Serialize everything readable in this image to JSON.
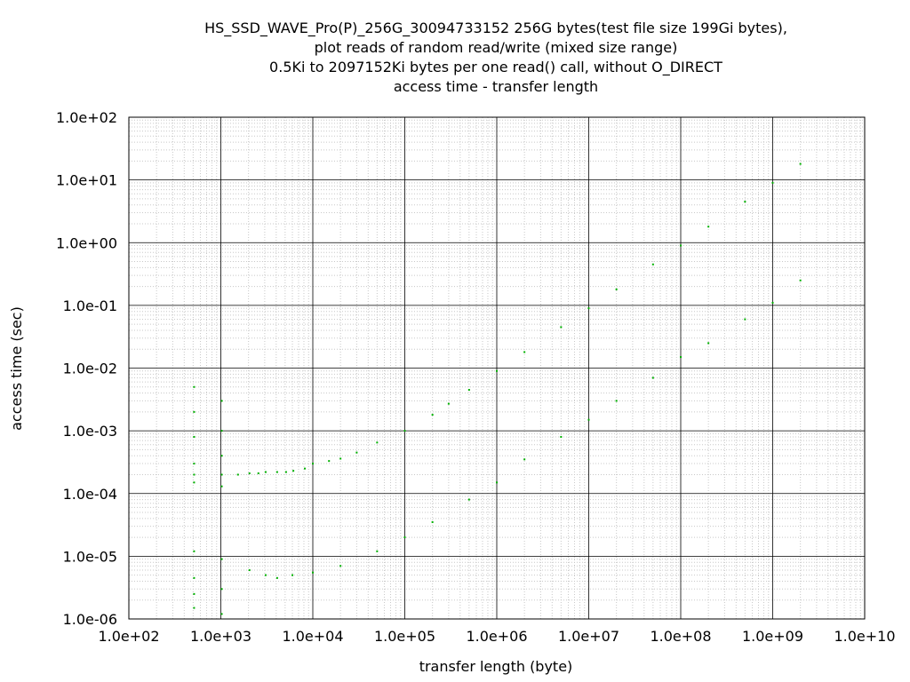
{
  "chart_data": {
    "type": "scatter",
    "title_lines": [
      "HS_SSD_WAVE_Pro(P)_256G_30094733152 256G bytes(test file size 199Gi bytes),",
      "plot reads of random read/write (mixed size range)",
      "0.5Ki to 2097152Ki bytes per one read() call, without O_DIRECT",
      "access time - transfer length"
    ],
    "xlabel": "transfer length (byte)",
    "ylabel": "access time (sec)",
    "x_scale": "log",
    "y_scale": "log",
    "xlim": [
      100,
      10000000000
    ],
    "ylim": [
      1e-06,
      100
    ],
    "x_tick_labels": [
      "1.0e+02",
      "1.0e+03",
      "1.0e+04",
      "1.0e+05",
      "1.0e+06",
      "1.0e+07",
      "1.0e+08",
      "1.0e+09",
      "1.0e+10"
    ],
    "y_tick_labels": [
      "1.0e-06",
      "1.0e-05",
      "1.0e-04",
      "1.0e-03",
      "1.0e-02",
      "1.0e-01",
      "1.0e+00",
      "1.0e+01",
      "1.0e+02"
    ],
    "grid": true,
    "legend": "none",
    "point_color": "#00b000",
    "series": [
      {
        "values": [
          [
            512,
            0.0002
          ],
          [
            512,
            0.00015
          ],
          [
            512,
            0.0003
          ],
          [
            512,
            0.0008
          ],
          [
            512,
            0.002
          ],
          [
            512,
            0.005
          ],
          [
            1024,
            0.0002
          ],
          [
            1024,
            0.00013
          ],
          [
            1024,
            0.0004
          ],
          [
            1024,
            0.001
          ],
          [
            1024,
            0.003
          ],
          [
            1536,
            0.0002
          ],
          [
            2048,
            0.00021
          ],
          [
            2560,
            0.00021
          ],
          [
            3072,
            0.00022
          ],
          [
            4096,
            0.00022
          ],
          [
            5120,
            0.00022
          ],
          [
            6144,
            0.00023
          ],
          [
            8192,
            0.00025
          ],
          [
            10000,
            0.0003
          ],
          [
            15000,
            0.00033
          ],
          [
            20000,
            0.00036
          ],
          [
            30000,
            0.00045
          ],
          [
            50000,
            0.00065
          ],
          [
            100000,
            0.001
          ],
          [
            200000,
            0.0018
          ],
          [
            300000,
            0.0027
          ],
          [
            500000,
            0.0045
          ],
          [
            1000000,
            0.009
          ],
          [
            2000000,
            0.018
          ],
          [
            5000000,
            0.045
          ],
          [
            10000000,
            0.09
          ],
          [
            20000000,
            0.18
          ],
          [
            50000000,
            0.45
          ],
          [
            100000000,
            0.9
          ],
          [
            200000000,
            1.8
          ],
          [
            500000000,
            4.5
          ],
          [
            1000000000,
            9
          ],
          [
            2000000000,
            18
          ]
        ]
      },
      {
        "values": [
          [
            512,
            1.2e-05
          ],
          [
            512,
            4.5e-06
          ],
          [
            512,
            2.5e-06
          ],
          [
            512,
            1.5e-06
          ],
          [
            1024,
            9e-06
          ],
          [
            1024,
            3e-06
          ],
          [
            1024,
            1.2e-06
          ],
          [
            2048,
            6e-06
          ],
          [
            3072,
            5e-06
          ],
          [
            4096,
            4.5e-06
          ],
          [
            6000,
            5e-06
          ],
          [
            10000,
            5.5e-06
          ],
          [
            20000,
            7e-06
          ],
          [
            50000,
            1.2e-05
          ],
          [
            100000,
            2e-05
          ],
          [
            200000,
            3.5e-05
          ],
          [
            500000,
            8e-05
          ],
          [
            1000000,
            0.00015
          ],
          [
            2000000,
            0.00035
          ],
          [
            5000000,
            0.0008
          ],
          [
            10000000,
            0.0015
          ],
          [
            20000000,
            0.003
          ],
          [
            50000000,
            0.007
          ],
          [
            100000000,
            0.015
          ],
          [
            200000000,
            0.025
          ],
          [
            500000000,
            0.06
          ],
          [
            1000000000,
            0.11
          ],
          [
            2000000000,
            0.25
          ]
        ]
      }
    ]
  }
}
